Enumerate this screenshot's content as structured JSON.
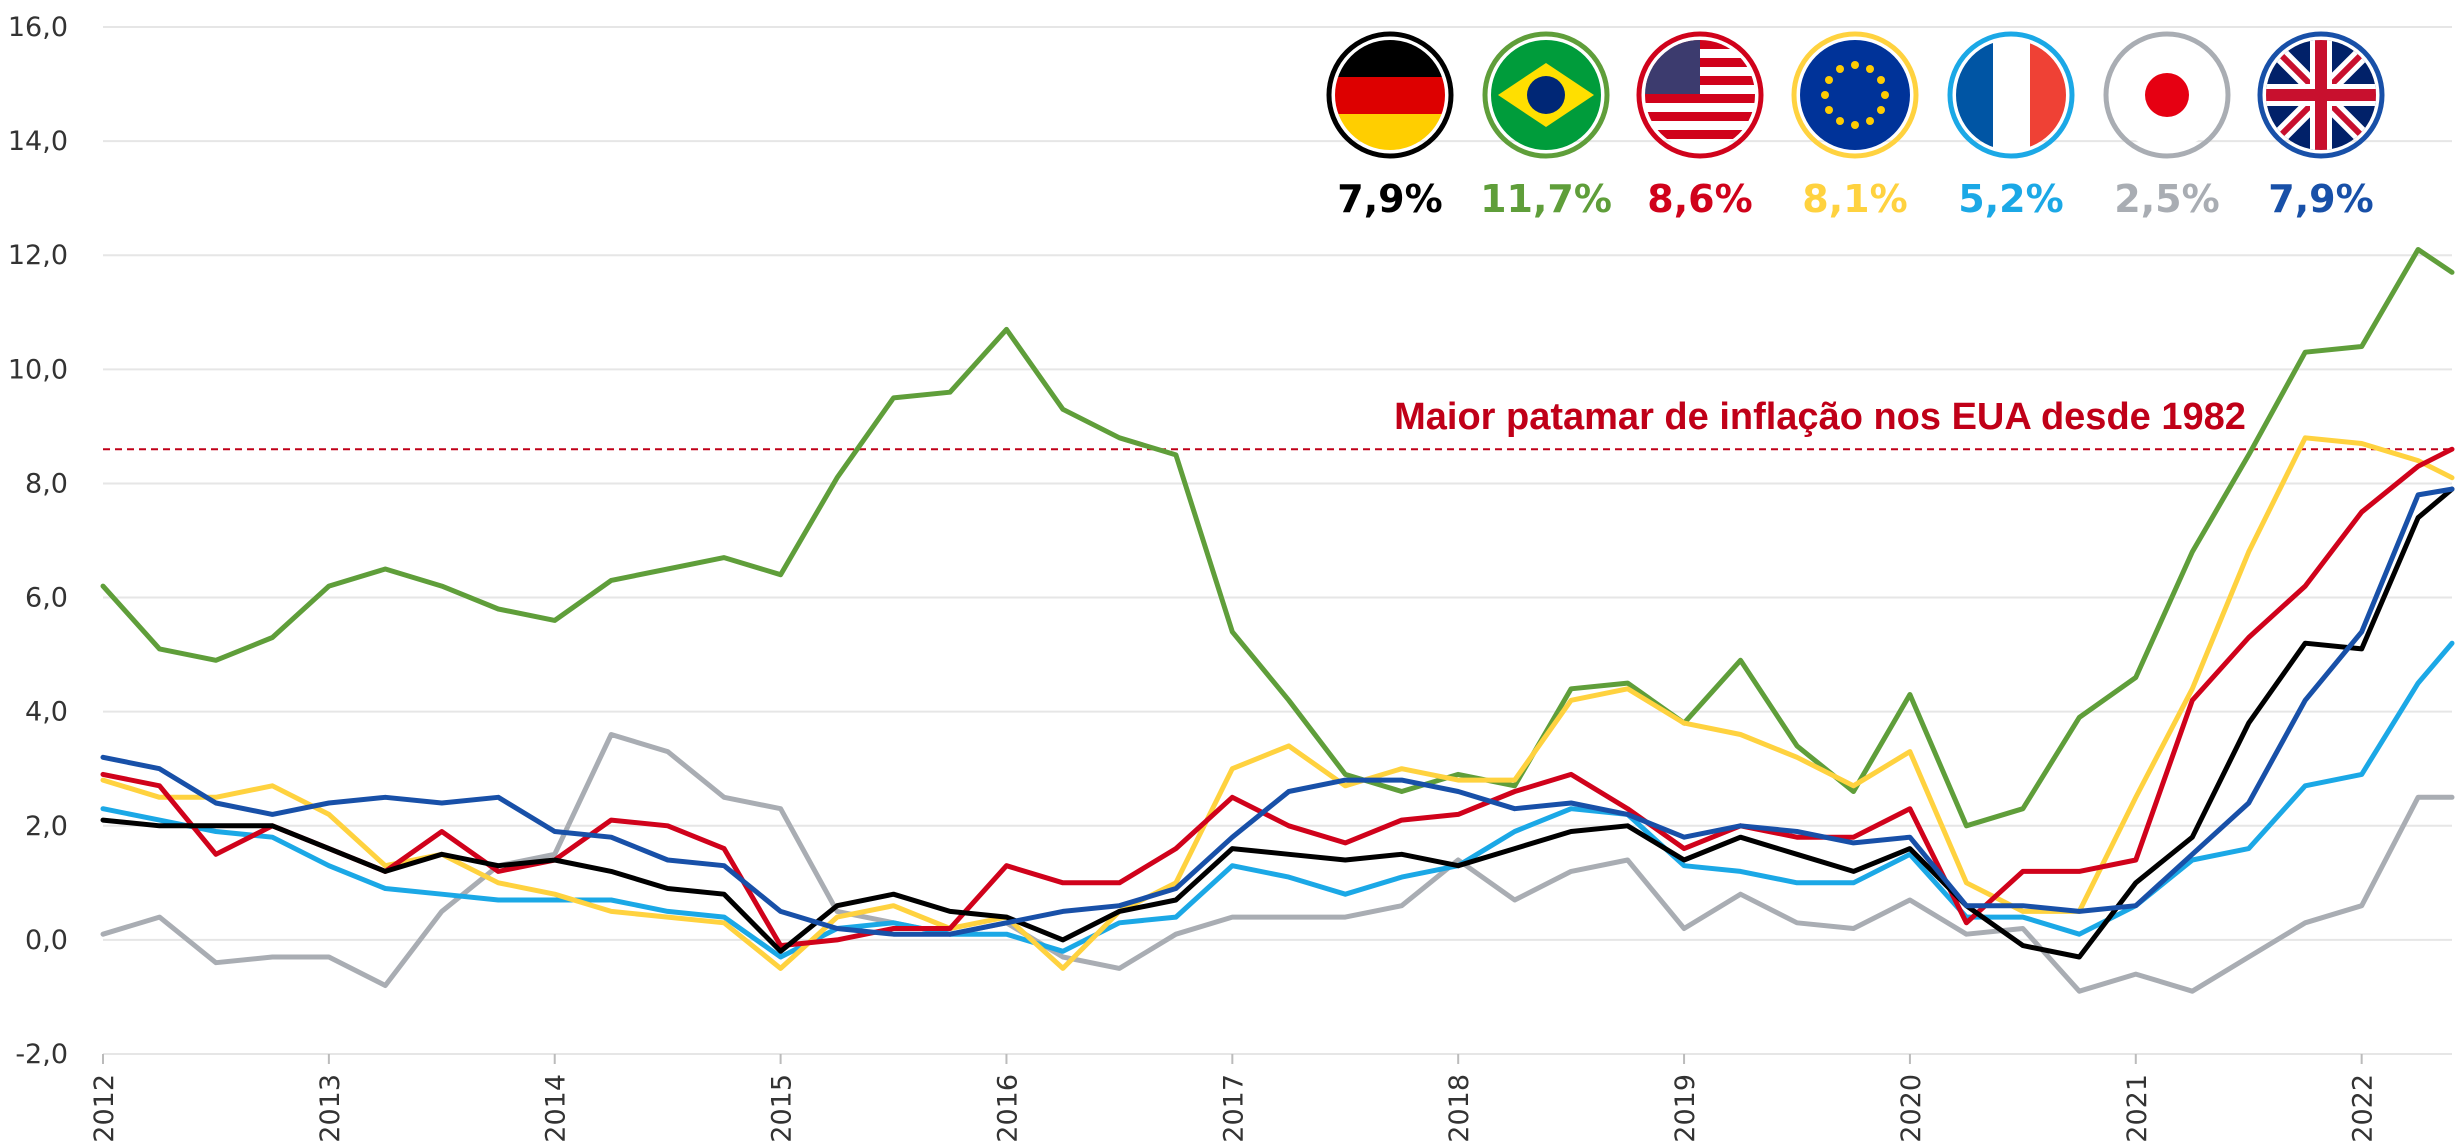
{
  "chart_data": {
    "type": "line",
    "annotation": {
      "text": "Maior patamar de inflação nos EUA desde 1982",
      "value": 8.6,
      "color": "#c00018"
    },
    "x": [
      2012,
      2012.25,
      2012.5,
      2012.75,
      2013,
      2013.25,
      2013.5,
      2013.75,
      2014,
      2014.25,
      2014.5,
      2014.75,
      2015,
      2015.25,
      2015.5,
      2015.75,
      2016,
      2016.25,
      2016.5,
      2016.75,
      2017,
      2017.25,
      2017.5,
      2017.75,
      2018,
      2018.25,
      2018.5,
      2018.75,
      2019,
      2019.25,
      2019.5,
      2019.75,
      2020,
      2020.25,
      2020.5,
      2020.75,
      2021,
      2021.25,
      2021.5,
      2021.75,
      2022,
      2022.25,
      2022.4
    ],
    "series": [
      {
        "legend_label": "2,5%",
        "color": "#a9adb3",
        "values": [
          0.1,
          0.4,
          -0.4,
          -0.3,
          -0.3,
          -0.8,
          0.5,
          1.3,
          1.5,
          3.6,
          3.3,
          2.5,
          2.3,
          0.5,
          0.3,
          0.1,
          0.3,
          -0.3,
          -0.5,
          0.1,
          0.4,
          0.4,
          0.4,
          0.6,
          1.4,
          0.7,
          1.2,
          1.4,
          0.2,
          0.8,
          0.3,
          0.2,
          0.7,
          0.1,
          0.2,
          -0.9,
          -0.6,
          -0.9,
          -0.3,
          0.3,
          0.6,
          2.5,
          2.5
        ]
      },
      {
        "legend_label": "11,7%",
        "color": "#5f9e3a",
        "values": [
          6.2,
          5.1,
          4.9,
          5.3,
          6.2,
          6.5,
          6.2,
          5.8,
          5.6,
          6.3,
          6.5,
          6.7,
          6.4,
          8.1,
          9.5,
          9.6,
          10.7,
          9.3,
          8.8,
          8.5,
          5.4,
          4.2,
          2.9,
          2.6,
          2.9,
          2.7,
          4.4,
          4.5,
          3.8,
          4.9,
          3.4,
          2.6,
          4.3,
          2.0,
          2.3,
          3.9,
          4.6,
          6.8,
          8.5,
          10.3,
          10.4,
          12.1,
          11.7
        ]
      },
      {
        "legend_label": "5,2%",
        "color": "#1ba8e6",
        "values": [
          2.3,
          2.1,
          1.9,
          1.8,
          1.3,
          0.9,
          0.8,
          0.7,
          0.7,
          0.7,
          0.5,
          0.4,
          -0.3,
          0.2,
          0.3,
          0.1,
          0.1,
          -0.2,
          0.3,
          0.4,
          1.3,
          1.1,
          0.8,
          1.1,
          1.3,
          1.9,
          2.3,
          2.2,
          1.3,
          1.2,
          1.0,
          1.0,
          1.5,
          0.4,
          0.4,
          0.1,
          0.6,
          1.4,
          1.6,
          2.7,
          2.9,
          4.5,
          5.2
        ]
      },
      {
        "legend_label": "8,1%",
        "color": "#ffd23f",
        "values": [
          2.8,
          2.5,
          2.5,
          2.7,
          2.2,
          1.3,
          1.5,
          1.0,
          0.8,
          0.5,
          0.4,
          0.3,
          -0.5,
          0.4,
          0.6,
          0.2,
          0.4,
          -0.5,
          0.5,
          1.0,
          3.0,
          3.4,
          2.7,
          3.0,
          2.8,
          2.8,
          4.2,
          4.4,
          3.8,
          3.6,
          3.2,
          2.7,
          3.3,
          1.0,
          0.5,
          0.5,
          2.5,
          4.4,
          6.8,
          8.8,
          8.7,
          8.4,
          8.1
        ]
      },
      {
        "legend_label": "8,6%",
        "color": "#d0021b",
        "values": [
          2.9,
          2.7,
          1.5,
          2.0,
          1.6,
          1.2,
          1.9,
          1.2,
          1.4,
          2.1,
          2.0,
          1.6,
          -0.1,
          0.0,
          0.2,
          0.2,
          1.3,
          1.0,
          1.0,
          1.6,
          2.5,
          2.0,
          1.7,
          2.1,
          2.2,
          2.6,
          2.9,
          2.3,
          1.6,
          2.0,
          1.8,
          1.8,
          2.3,
          0.3,
          1.2,
          1.2,
          1.4,
          4.2,
          5.3,
          6.2,
          7.5,
          8.3,
          8.6
        ]
      },
      {
        "legend_label": "7,9%",
        "color": "#000000",
        "values": [
          2.1,
          2.0,
          2.0,
          2.0,
          1.6,
          1.2,
          1.5,
          1.3,
          1.4,
          1.2,
          0.9,
          0.8,
          -0.2,
          0.6,
          0.8,
          0.5,
          0.4,
          0.0,
          0.5,
          0.7,
          1.6,
          1.5,
          1.4,
          1.5,
          1.3,
          1.6,
          1.9,
          2.0,
          1.4,
          1.8,
          1.5,
          1.2,
          1.6,
          0.6,
          -0.1,
          -0.3,
          1.0,
          1.8,
          3.8,
          5.2,
          5.1,
          7.4,
          7.9
        ]
      },
      {
        "legend_label": "7,9%",
        "color": "#1850a8",
        "values": [
          3.2,
          3.0,
          2.4,
          2.2,
          2.4,
          2.5,
          2.4,
          2.5,
          1.9,
          1.8,
          1.4,
          1.3,
          0.5,
          0.2,
          0.1,
          0.1,
          0.3,
          0.5,
          0.6,
          0.9,
          1.8,
          2.6,
          2.8,
          2.8,
          2.6,
          2.3,
          2.4,
          2.2,
          1.8,
          2.0,
          1.9,
          1.7,
          1.8,
          0.6,
          0.6,
          0.5,
          0.6,
          1.5,
          2.4,
          4.2,
          5.4,
          7.8,
          7.9
        ]
      }
    ],
    "xlim": [
      2012,
      2022.4
    ],
    "xticks": [
      2012,
      2013,
      2014,
      2015,
      2016,
      2017,
      2018,
      2019,
      2020,
      2021,
      2022
    ],
    "ylim": [
      -2,
      16
    ],
    "yticks": [
      {
        "value": -2,
        "label": "-2,0"
      },
      {
        "value": 0,
        "label": "0,0"
      },
      {
        "value": 2,
        "label": "2,0"
      },
      {
        "value": 4,
        "label": "4,0"
      },
      {
        "value": 6,
        "label": "6,0"
      },
      {
        "value": 8,
        "label": "8,0"
      },
      {
        "value": 10,
        "label": "10,0"
      },
      {
        "value": 12,
        "label": "12,0"
      },
      {
        "value": 14,
        "label": "14,0"
      },
      {
        "value": 16,
        "label": "16,0"
      }
    ],
    "grid": true
  }
}
